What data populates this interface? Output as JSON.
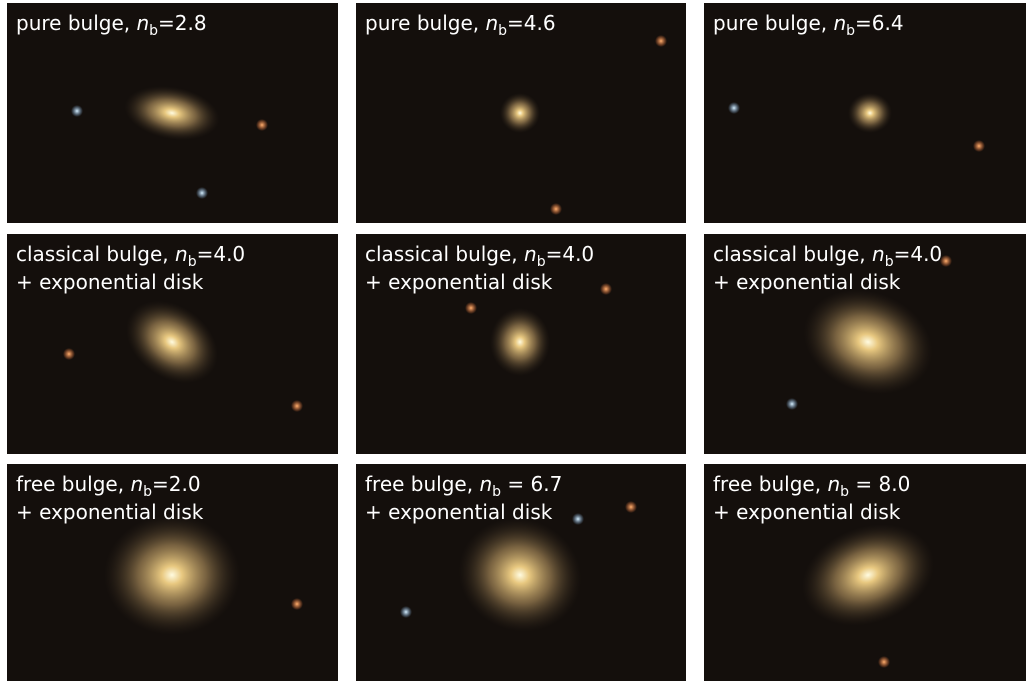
{
  "panels": [
    {
      "prefix": "pure bulge, ",
      "symbol": "n",
      "subscript": "b",
      "value": "=2.8"
    },
    {
      "prefix": "pure bulge, ",
      "symbol": "n",
      "subscript": "b",
      "value": "=4.6"
    },
    {
      "prefix": "pure bulge, ",
      "symbol": "n",
      "subscript": "b",
      "value": "=6.4"
    },
    {
      "prefix": "classical bulge, ",
      "symbol": "n",
      "subscript": "b",
      "value": "=4.0",
      "line2": "+ exponential disk"
    },
    {
      "prefix": "classical bulge, ",
      "symbol": "n",
      "subscript": "b",
      "value": "=4.0",
      "line2": "+ exponential disk"
    },
    {
      "prefix": "classical bulge, ",
      "symbol": "n",
      "subscript": "b",
      "value": "=4.0",
      "line2": "+ exponential disk"
    },
    {
      "prefix": "free bulge, ",
      "symbol": "n",
      "subscript": "b",
      "value": "=2.0",
      "line2": "+ exponential disk"
    },
    {
      "prefix": "free bulge, ",
      "symbol": "n",
      "subscript": "b",
      "value": " = 6.7",
      "line2": "+ exponential disk"
    },
    {
      "prefix": "free bulge, ",
      "symbol": "n",
      "subscript": "b",
      "value": " = 8.0",
      "line2": "+ exponential disk"
    }
  ]
}
